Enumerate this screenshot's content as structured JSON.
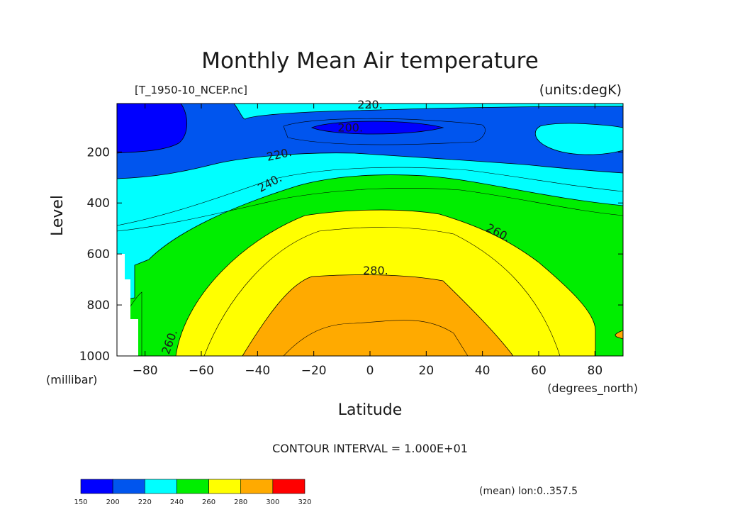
{
  "chart_data": {
    "type": "heatmap",
    "title": "Monthly Mean Air temperature",
    "file_label": "[T_1950-10_NCEP.nc]",
    "units_label": "(units:degK)",
    "xlabel": "Latitude",
    "ylabel": "Level",
    "x_units": "(degrees_north)",
    "y_units": "(millibar)",
    "xlim": [
      -90,
      90
    ],
    "ylim": [
      1000,
      10
    ],
    "x_ticks": [
      -80,
      -60,
      -40,
      -20,
      0,
      20,
      40,
      60,
      80
    ],
    "x_tick_labels": [
      "−80",
      "−60",
      "−40",
      "−20",
      "0",
      "20",
      "40",
      "60",
      "80"
    ],
    "y_ticks": [
      200,
      400,
      600,
      800,
      1000
    ],
    "y_tick_labels": [
      "200",
      "400",
      "600",
      "800",
      "1000"
    ],
    "contour_labels": [
      "220.",
      "200.",
      "220.",
      "240.",
      "260.",
      "280.",
      "260."
    ],
    "contour_interval_text": "CONTOUR INTERVAL = 1.000E+01",
    "mean_text": "(mean) lon:0..357.5",
    "colorbar": {
      "levels": [
        150,
        200,
        220,
        240,
        260,
        280,
        300,
        320
      ],
      "colors": [
        "#0000ff",
        "#0055ee",
        "#00ffff",
        "#00ee00",
        "#ffff00",
        "#ffaa00",
        "#ff0000"
      ]
    }
  }
}
